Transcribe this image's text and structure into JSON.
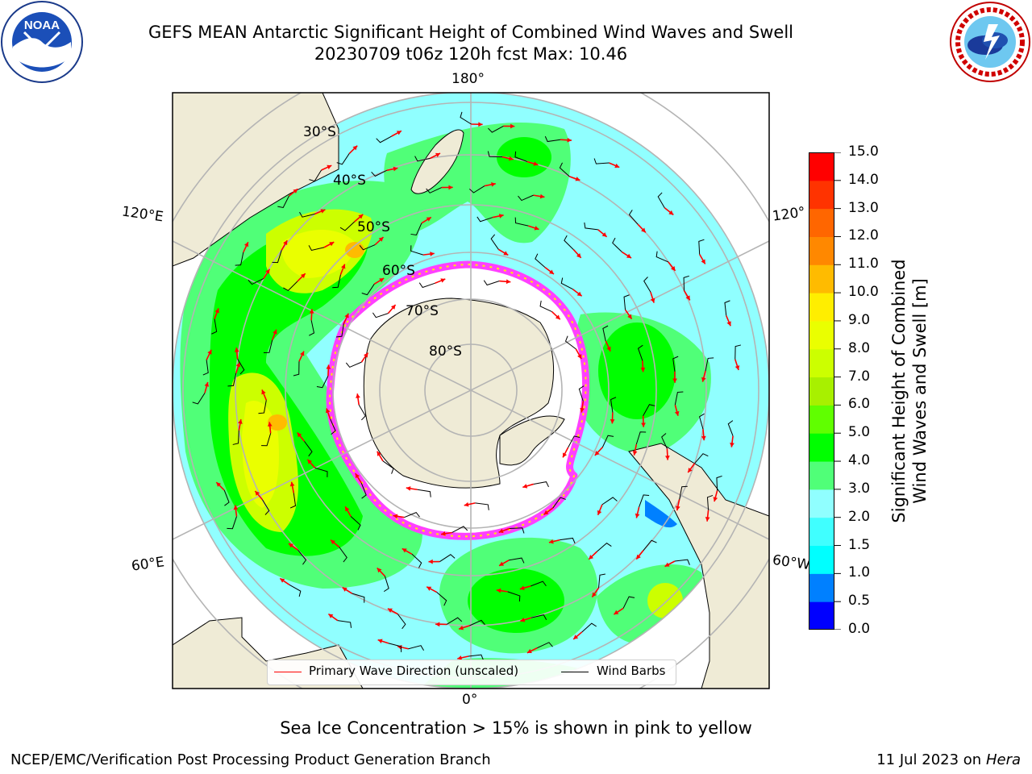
{
  "title": {
    "line1": "GEFS MEAN Antarctic Significant Height of Combined Wind Waves and Swell",
    "line2": "20230709 t06z 120h fcst   Max: 10.46"
  },
  "logos": {
    "left": {
      "name": "noaa-logo",
      "text": "NOAA",
      "ring_text": "NATIONAL OCEANIC AND ATMOSPHERIC ADMINISTRATION · U.S. DEPARTMENT OF COMMERCE"
    },
    "right": {
      "name": "nws-logo",
      "ring_text": "NATIONAL WEATHER SERVICE"
    }
  },
  "map": {
    "projection": "south-polar-stereographic",
    "longitude_labels": [
      "180°",
      "120°E",
      "120°",
      "60°E",
      "60°W",
      "0°"
    ],
    "latitude_labels": [
      "30°S",
      "40°S",
      "50°S",
      "60°S",
      "70°S",
      "80°S"
    ],
    "colors": {
      "land": "#efebd6",
      "ocean_low": "#90ffff",
      "ice_edge": "#ff40ff",
      "ice_fill": "#ffffff",
      "grid": "#b4b4b4",
      "arrow": "#ff0000",
      "barb": "#000000"
    }
  },
  "colorbar": {
    "label": "Significant Height of Combined\nWind Waves and Swell [m]",
    "ticks": [
      "15.0",
      "14.0",
      "13.0",
      "12.0",
      "11.0",
      "10.0",
      "9.0",
      "8.0",
      "7.0",
      "6.0",
      "5.0",
      "4.0",
      "3.0",
      "2.0",
      "1.5",
      "1.0",
      "0.5",
      "0.0"
    ],
    "colors_bottom_to_top": [
      "#0000ff",
      "#0080ff",
      "#00ffff",
      "#40ffff",
      "#90ffff",
      "#50ff78",
      "#00ff00",
      "#60ff00",
      "#a8f000",
      "#ccff00",
      "#eaff00",
      "#ffee00",
      "#ffbb00",
      "#ff8800",
      "#ff6600",
      "#ff3300",
      "#ff0000"
    ]
  },
  "legend": {
    "entries": [
      {
        "label": "Primary Wave Direction (unscaled)",
        "color": "#ff0000"
      },
      {
        "label": "Wind Barbs",
        "color": "#000000"
      }
    ]
  },
  "footer": {
    "ice_note": "Sea Ice Concentration > 15% is shown in pink to yellow",
    "credit": "NCEP/EMC/Verification Post Processing Product Generation Branch",
    "date_prefix": "11 Jul 2023 on ",
    "date_machine": "Hera"
  }
}
